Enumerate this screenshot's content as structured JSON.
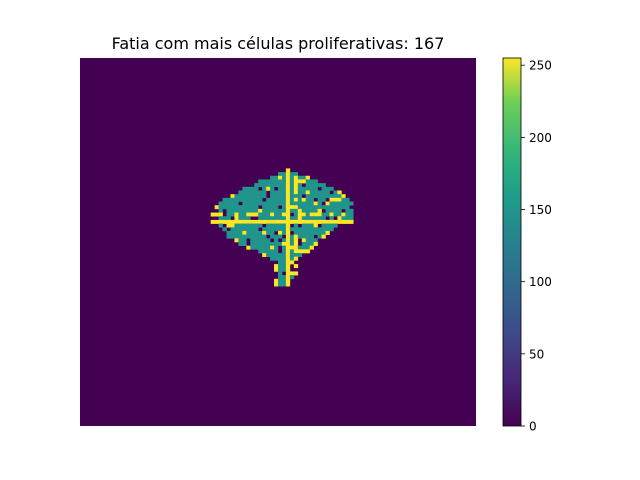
{
  "chart_data": {
    "type": "heatmap",
    "title": "Fatia com mais células proliferativas: 167",
    "colormap": "viridis",
    "value_range": [
      0,
      255
    ],
    "grid": false,
    "axes_visible": false,
    "colorbar": {
      "placement": "right",
      "ticks": [
        0,
        50,
        100,
        150,
        200,
        250
      ],
      "tick_labels": [
        "0",
        "50",
        "100",
        "150",
        "200",
        "250"
      ]
    },
    "image_size": [
      100,
      100
    ],
    "background_value": 0,
    "levels": {
      "background": 0,
      "tissue": 150,
      "proliferative": 255
    },
    "blob": {
      "row_range": [
        30,
        61
      ],
      "col_range": [
        33,
        68
      ],
      "cross_center": [
        44,
        52
      ]
    }
  }
}
